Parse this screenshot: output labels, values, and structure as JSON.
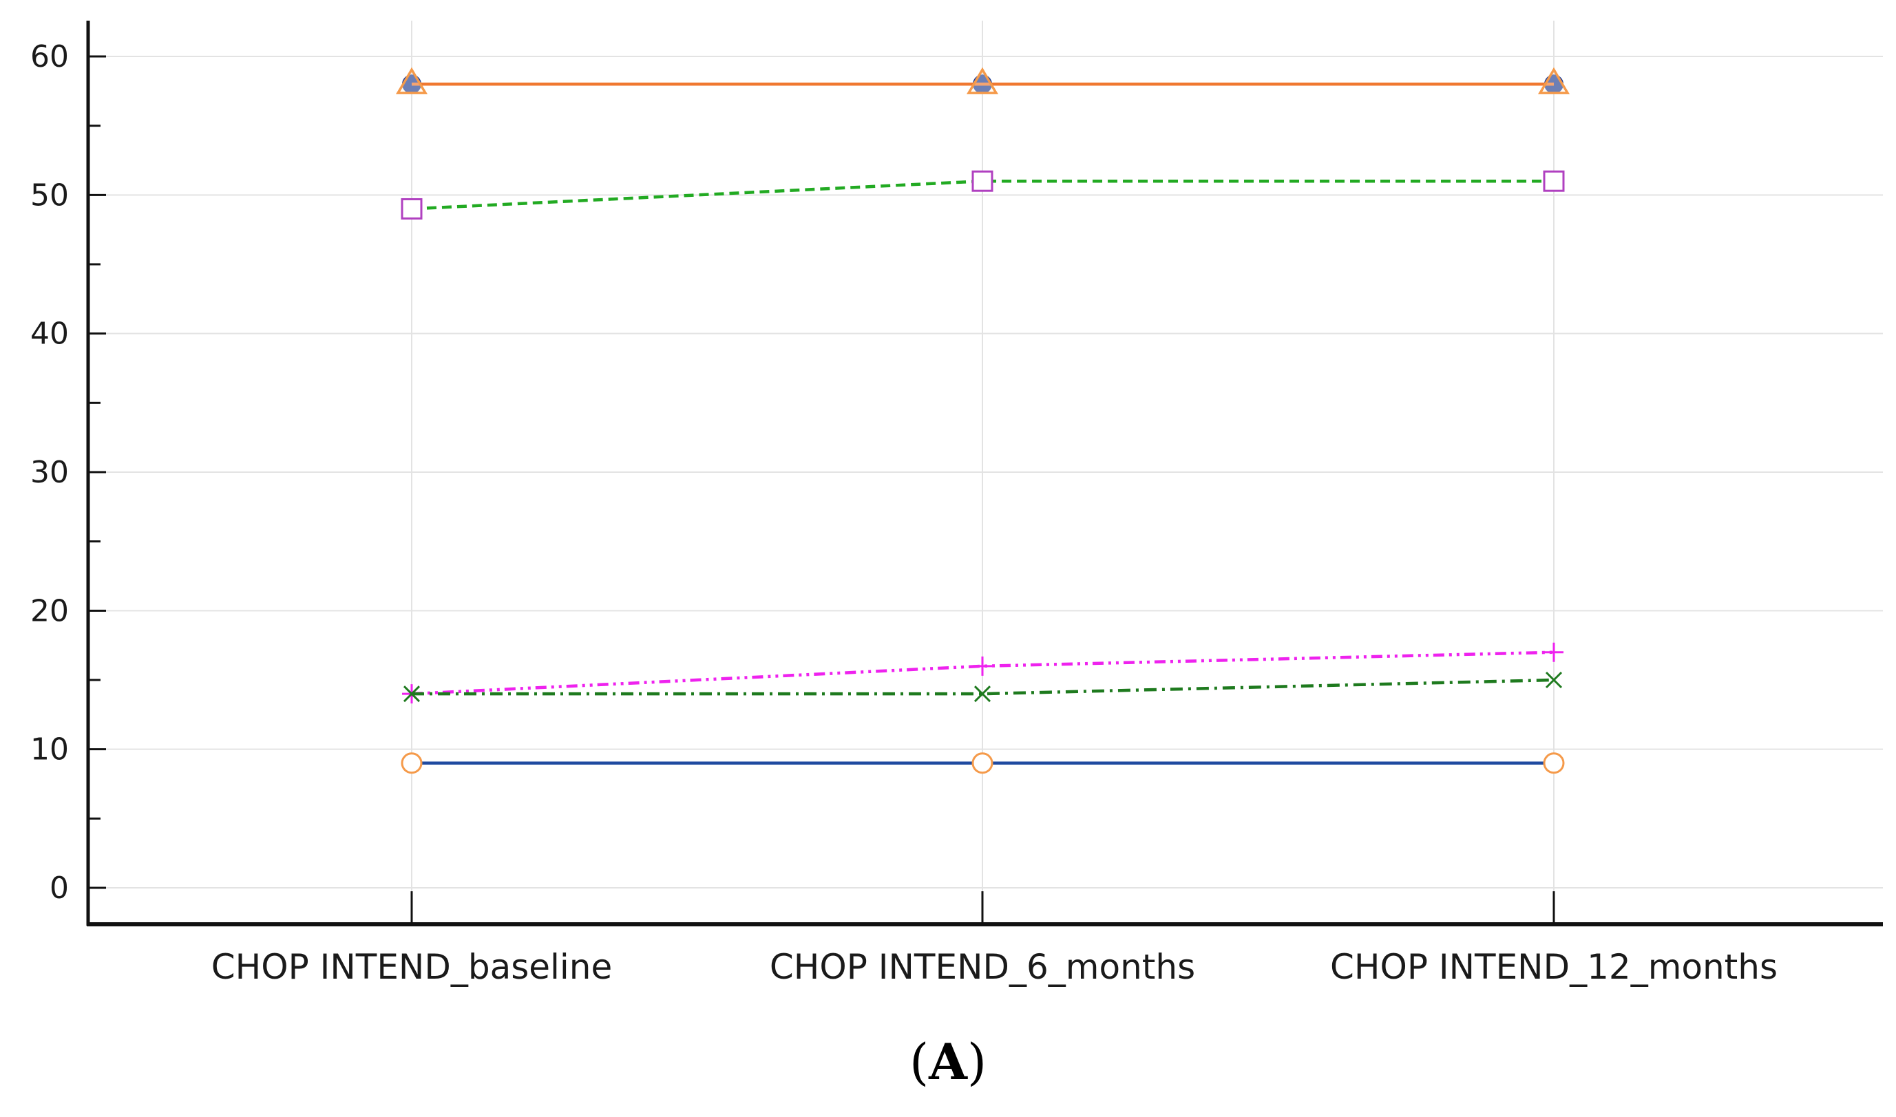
{
  "panel_label": {
    "open": "(",
    "letter": "A",
    "close": ")"
  },
  "chart_data": {
    "type": "line",
    "title": "",
    "xlabel": "",
    "ylabel": "",
    "categories": [
      "CHOP INTEND_baseline",
      "CHOP INTEND_6_months",
      "CHOP INTEND_12_months"
    ],
    "ylim": [
      0,
      60
    ],
    "yticks": [
      0,
      10,
      20,
      30,
      40,
      50,
      60
    ],
    "grid": true,
    "legend": "none",
    "series": [
      {
        "values": [
          58,
          58,
          58
        ],
        "color": "#1f3f99",
        "line_style": "solid",
        "marker": "filled-circle"
      },
      {
        "values": [
          58,
          58,
          58
        ],
        "color": "#f07830",
        "line_style": "solid",
        "marker": "triangle",
        "marker_color": "#f59a4a"
      },
      {
        "values": [
          49,
          51,
          51
        ],
        "color": "#22aa22",
        "line_style": "dashed",
        "marker": "square",
        "marker_color": "#b040c0"
      },
      {
        "values": [
          14,
          16,
          17
        ],
        "color": "#ee22ee",
        "line_style": "dash-dot-dot",
        "marker": "plus"
      },
      {
        "values": [
          14,
          14,
          15
        ],
        "color": "#1e7a1e",
        "line_style": "dash-dot",
        "marker": "x"
      },
      {
        "values": [
          9,
          9,
          9
        ],
        "color": "#1f4aa0",
        "line_style": "solid",
        "marker": "circle",
        "marker_color": "#f59a4a"
      }
    ]
  }
}
